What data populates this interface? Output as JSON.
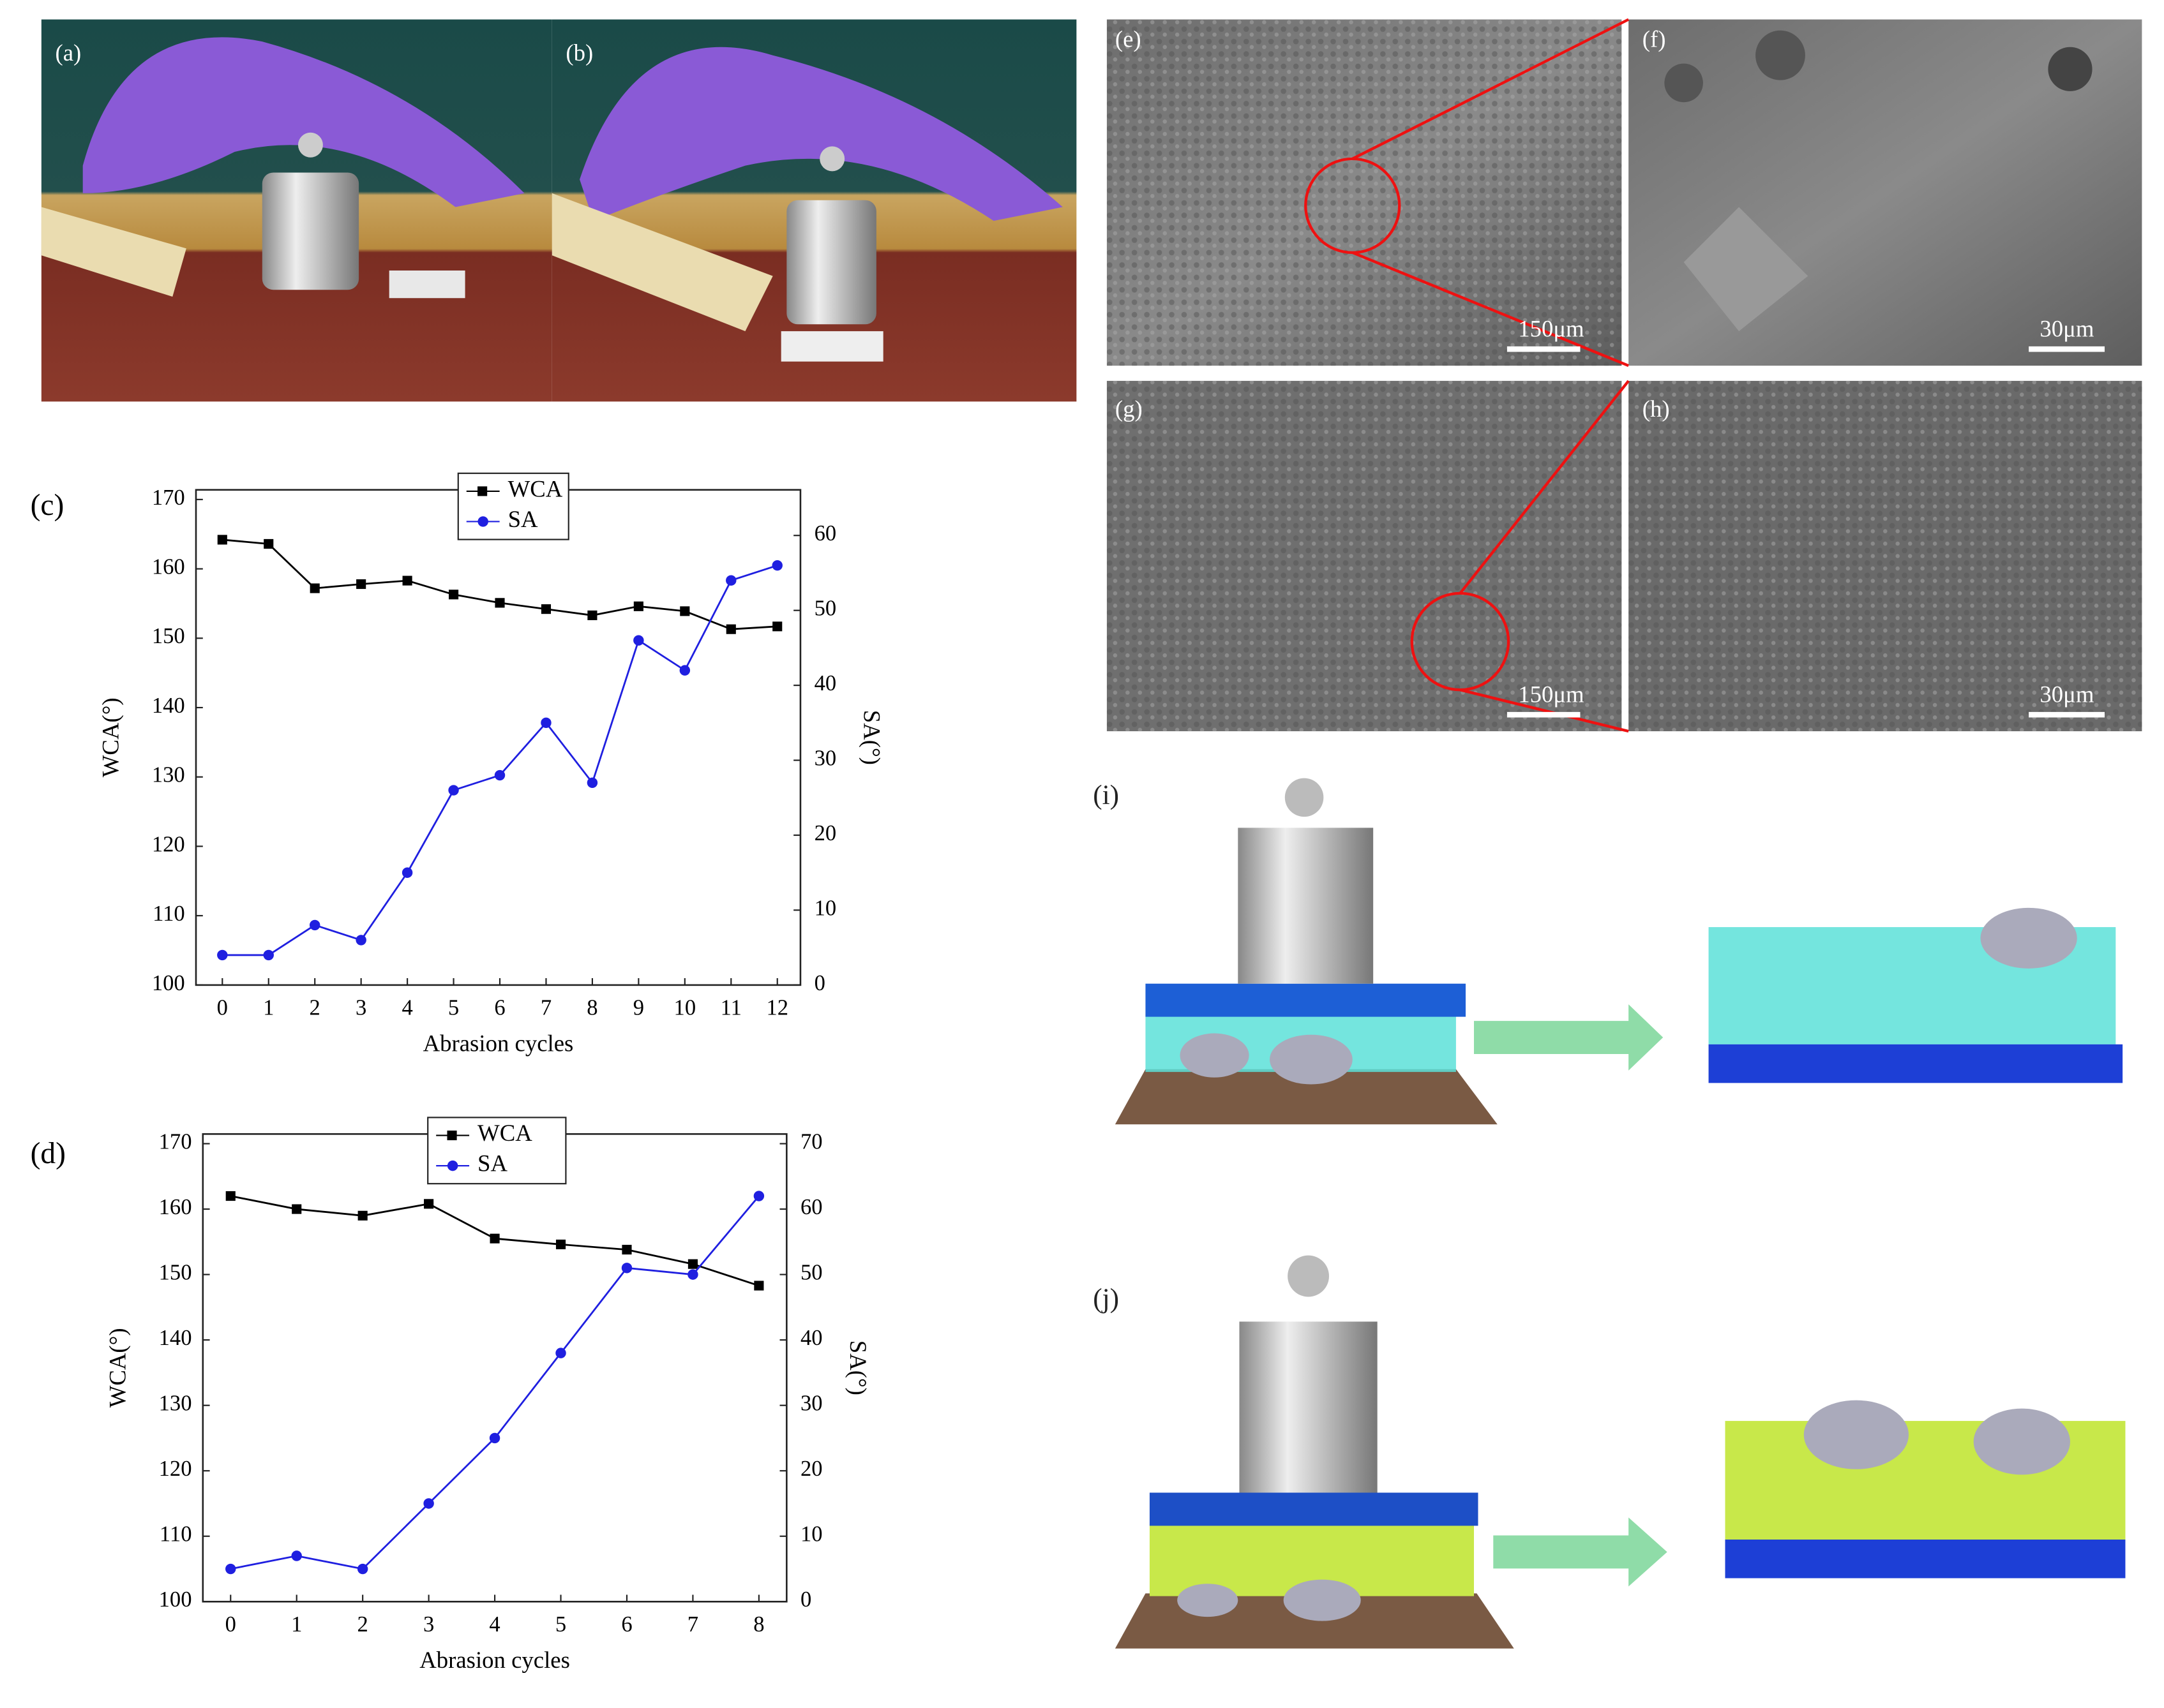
{
  "chart_data": [
    {
      "type": "line",
      "panel_label": "(c)",
      "x_label": "Abrasion cycles",
      "y_label": "WCA(°)",
      "y2_label": "SA(°)",
      "x": [
        0,
        1,
        2,
        3,
        4,
        5,
        6,
        7,
        8,
        9,
        10,
        11,
        12
      ],
      "xlim": [
        -0.57,
        12.5
      ],
      "xticks": [
        0,
        1,
        2,
        3,
        4,
        5,
        6,
        7,
        8,
        9,
        10,
        11,
        12
      ],
      "ylim": [
        100,
        170
      ],
      "yticks": [
        100,
        110,
        120,
        130,
        140,
        150,
        160,
        170
      ],
      "y2lim": [
        0,
        64.8
      ],
      "y2ticks": [
        0,
        10,
        20,
        30,
        40,
        50,
        60
      ],
      "series": [
        {
          "name": "WCA",
          "color": "#000000",
          "marker": "square",
          "values": [
            164.2,
            163.6,
            157.2,
            157.8,
            158.3,
            156.3,
            155.1,
            154.2,
            153.3,
            154.6,
            153.9,
            151.3,
            151.7
          ]
        },
        {
          "name": "SA",
          "color": "#1f1fe0",
          "marker": "circle",
          "axis": "y2",
          "values": [
            4,
            4,
            8,
            6,
            15,
            26,
            28,
            35,
            27,
            46,
            42,
            54,
            56
          ]
        }
      ]
    },
    {
      "type": "line",
      "panel_label": "(d)",
      "x_label": "Abrasion cycles",
      "y_label": "WCA(°)",
      "y2_label": "SA(°)",
      "x": [
        0,
        1,
        2,
        3,
        4,
        5,
        6,
        7,
        8
      ],
      "xlim": [
        -0.42,
        8.42
      ],
      "xticks": [
        0,
        1,
        2,
        3,
        4,
        5,
        6,
        7,
        8
      ],
      "ylim": [
        100,
        170
      ],
      "yticks": [
        100,
        110,
        120,
        130,
        140,
        150,
        160,
        170
      ],
      "y2lim": [
        0,
        70
      ],
      "y2ticks": [
        0,
        10,
        20,
        30,
        40,
        50,
        60,
        70
      ],
      "series": [
        {
          "name": "WCA",
          "color": "#000000",
          "marker": "square",
          "values": [
            162,
            160,
            159,
            160.8,
            155.5,
            154.6,
            153.8,
            151.6,
            148.3
          ]
        },
        {
          "name": "SA",
          "color": "#1f1fe0",
          "marker": "circle",
          "axis": "y2",
          "values": [
            5,
            7,
            5,
            15,
            25,
            38,
            51,
            50,
            62
          ]
        }
      ]
    }
  ],
  "panels": {
    "a": "(a)",
    "b": "(b)",
    "e": "(e)",
    "f": "(f)",
    "g": "(g)",
    "h": "(h)",
    "i": "(i)",
    "j": "(j)",
    "e_scale": "150μm",
    "f_scale": "30μm",
    "g_scale": "150μm",
    "h_scale": "30μm"
  }
}
